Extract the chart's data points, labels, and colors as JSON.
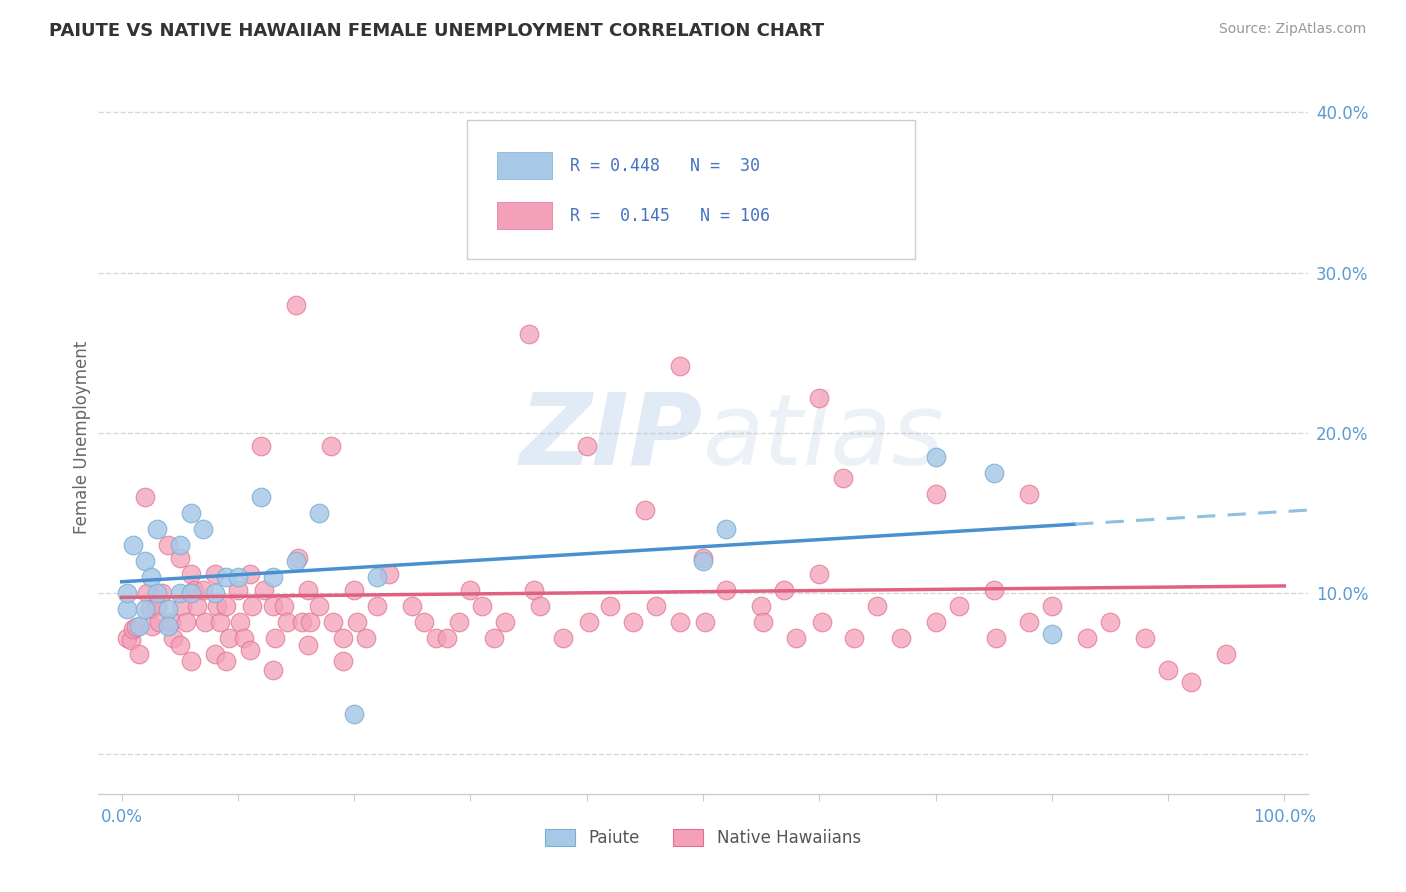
{
  "title": "PAIUTE VS NATIVE HAWAIIAN FEMALE UNEMPLOYMENT CORRELATION CHART",
  "source": "Source: ZipAtlas.com",
  "ylabel": "Female Unemployment",
  "xlim": [
    -0.02,
    1.02
  ],
  "ylim": [
    -0.025,
    0.42
  ],
  "ytick_vals": [
    0.0,
    0.1,
    0.2,
    0.3,
    0.4
  ],
  "ytick_labels_right": [
    "",
    "10.0%",
    "20.0%",
    "30.0%",
    "40.0%"
  ],
  "paiute_color": "#a8c8e8",
  "paiute_edge_color": "#7aafd0",
  "native_hawaiian_color": "#f4a0b8",
  "native_hawaiian_edge_color": "#e07090",
  "paiute_line_color": "#4a90d0",
  "native_hawaiian_line_color": "#e06080",
  "trend_dashed_color": "#90c0e0",
  "grid_color": "#d8d8d8",
  "tick_label_color": "#5b9bd5",
  "paiute_points": [
    [
      0.005,
      0.09
    ],
    [
      0.005,
      0.1
    ],
    [
      0.01,
      0.13
    ],
    [
      0.015,
      0.08
    ],
    [
      0.02,
      0.12
    ],
    [
      0.02,
      0.09
    ],
    [
      0.025,
      0.11
    ],
    [
      0.03,
      0.1
    ],
    [
      0.03,
      0.14
    ],
    [
      0.04,
      0.09
    ],
    [
      0.04,
      0.08
    ],
    [
      0.05,
      0.1
    ],
    [
      0.05,
      0.13
    ],
    [
      0.06,
      0.1
    ],
    [
      0.06,
      0.15
    ],
    [
      0.07,
      0.14
    ],
    [
      0.08,
      0.1
    ],
    [
      0.09,
      0.11
    ],
    [
      0.1,
      0.11
    ],
    [
      0.12,
      0.16
    ],
    [
      0.13,
      0.11
    ],
    [
      0.15,
      0.12
    ],
    [
      0.17,
      0.15
    ],
    [
      0.2,
      0.025
    ],
    [
      0.22,
      0.11
    ],
    [
      0.5,
      0.12
    ],
    [
      0.52,
      0.14
    ],
    [
      0.7,
      0.185
    ],
    [
      0.75,
      0.175
    ],
    [
      0.8,
      0.075
    ]
  ],
  "native_hawaiian_points": [
    [
      0.005,
      0.072
    ],
    [
      0.008,
      0.071
    ],
    [
      0.01,
      0.078
    ],
    [
      0.012,
      0.079
    ],
    [
      0.015,
      0.062
    ],
    [
      0.02,
      0.16
    ],
    [
      0.022,
      0.1
    ],
    [
      0.024,
      0.09
    ],
    [
      0.026,
      0.08
    ],
    [
      0.03,
      0.092
    ],
    [
      0.032,
      0.082
    ],
    [
      0.035,
      0.1
    ],
    [
      0.04,
      0.13
    ],
    [
      0.042,
      0.082
    ],
    [
      0.044,
      0.072
    ],
    [
      0.05,
      0.122
    ],
    [
      0.052,
      0.092
    ],
    [
      0.055,
      0.082
    ],
    [
      0.06,
      0.112
    ],
    [
      0.062,
      0.102
    ],
    [
      0.065,
      0.092
    ],
    [
      0.07,
      0.102
    ],
    [
      0.072,
      0.082
    ],
    [
      0.08,
      0.112
    ],
    [
      0.082,
      0.092
    ],
    [
      0.085,
      0.082
    ],
    [
      0.09,
      0.092
    ],
    [
      0.092,
      0.072
    ],
    [
      0.1,
      0.102
    ],
    [
      0.102,
      0.082
    ],
    [
      0.105,
      0.072
    ],
    [
      0.11,
      0.112
    ],
    [
      0.112,
      0.092
    ],
    [
      0.12,
      0.192
    ],
    [
      0.122,
      0.102
    ],
    [
      0.13,
      0.092
    ],
    [
      0.132,
      0.072
    ],
    [
      0.14,
      0.092
    ],
    [
      0.142,
      0.082
    ],
    [
      0.15,
      0.28
    ],
    [
      0.152,
      0.122
    ],
    [
      0.155,
      0.082
    ],
    [
      0.16,
      0.102
    ],
    [
      0.162,
      0.082
    ],
    [
      0.17,
      0.092
    ],
    [
      0.18,
      0.192
    ],
    [
      0.182,
      0.082
    ],
    [
      0.19,
      0.072
    ],
    [
      0.2,
      0.102
    ],
    [
      0.202,
      0.082
    ],
    [
      0.21,
      0.072
    ],
    [
      0.22,
      0.092
    ],
    [
      0.23,
      0.112
    ],
    [
      0.25,
      0.092
    ],
    [
      0.26,
      0.082
    ],
    [
      0.27,
      0.072
    ],
    [
      0.28,
      0.072
    ],
    [
      0.29,
      0.082
    ],
    [
      0.3,
      0.102
    ],
    [
      0.31,
      0.092
    ],
    [
      0.32,
      0.072
    ],
    [
      0.33,
      0.082
    ],
    [
      0.35,
      0.262
    ],
    [
      0.355,
      0.102
    ],
    [
      0.36,
      0.092
    ],
    [
      0.38,
      0.072
    ],
    [
      0.4,
      0.192
    ],
    [
      0.402,
      0.082
    ],
    [
      0.42,
      0.092
    ],
    [
      0.44,
      0.082
    ],
    [
      0.45,
      0.152
    ],
    [
      0.46,
      0.092
    ],
    [
      0.48,
      0.082
    ],
    [
      0.5,
      0.122
    ],
    [
      0.502,
      0.082
    ],
    [
      0.52,
      0.102
    ],
    [
      0.55,
      0.092
    ],
    [
      0.552,
      0.082
    ],
    [
      0.57,
      0.102
    ],
    [
      0.58,
      0.072
    ],
    [
      0.6,
      0.112
    ],
    [
      0.602,
      0.082
    ],
    [
      0.62,
      0.172
    ],
    [
      0.63,
      0.072
    ],
    [
      0.65,
      0.092
    ],
    [
      0.67,
      0.072
    ],
    [
      0.7,
      0.082
    ],
    [
      0.72,
      0.092
    ],
    [
      0.75,
      0.102
    ],
    [
      0.752,
      0.072
    ],
    [
      0.78,
      0.082
    ],
    [
      0.8,
      0.092
    ],
    [
      0.83,
      0.072
    ],
    [
      0.85,
      0.082
    ],
    [
      0.88,
      0.072
    ],
    [
      0.35,
      0.332
    ],
    [
      0.48,
      0.242
    ],
    [
      0.6,
      0.222
    ],
    [
      0.7,
      0.162
    ],
    [
      0.78,
      0.162
    ],
    [
      0.08,
      0.062
    ],
    [
      0.09,
      0.058
    ],
    [
      0.9,
      0.052
    ],
    [
      0.92,
      0.045
    ],
    [
      0.95,
      0.062
    ],
    [
      0.05,
      0.068
    ],
    [
      0.06,
      0.058
    ],
    [
      0.11,
      0.065
    ],
    [
      0.13,
      0.052
    ],
    [
      0.16,
      0.068
    ],
    [
      0.19,
      0.058
    ]
  ]
}
